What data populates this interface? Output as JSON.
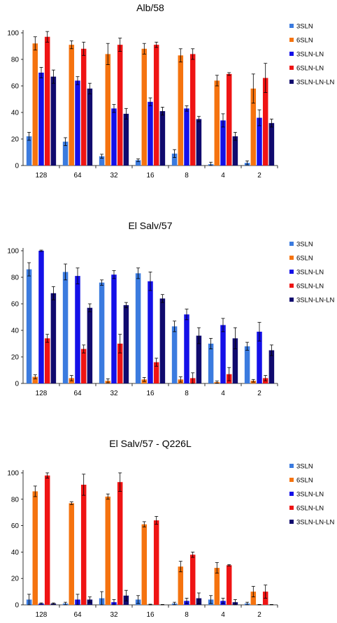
{
  "colors": {
    "3SLN": "#3b7bdf",
    "6SLN": "#f5730f",
    "3SLN-LN": "#1410e8",
    "6SLN-LN": "#ef1414",
    "3SLN-LN-LN": "#100a6e"
  },
  "chart_data": [
    {
      "type": "bar",
      "title": "Alb/58",
      "categories": [
        "128",
        "64",
        "32",
        "16",
        "8",
        "4",
        "2"
      ],
      "ylim": [
        0,
        100
      ],
      "yticks": [
        0,
        20,
        40,
        60,
        80,
        100
      ],
      "legend_position": "right",
      "series": [
        {
          "name": "3SLN",
          "values": [
            22,
            18,
            7,
            4,
            9,
            1,
            2
          ],
          "errors": [
            3,
            3,
            1.5,
            1,
            3,
            1.5,
            1.5
          ]
        },
        {
          "name": "6SLN",
          "values": [
            92,
            91,
            84,
            88,
            83,
            64,
            58
          ],
          "errors": [
            5,
            3,
            8,
            4,
            5,
            4,
            11
          ]
        },
        {
          "name": "3SLN-LN",
          "values": [
            70,
            64,
            43,
            48,
            43,
            34,
            36
          ],
          "errors": [
            4,
            3,
            3,
            3,
            2,
            5,
            6
          ]
        },
        {
          "name": "6SLN-LN",
          "values": [
            97,
            88,
            91,
            91,
            84,
            69,
            66
          ],
          "errors": [
            4,
            5,
            5,
            2,
            4,
            1,
            11
          ]
        },
        {
          "name": "3SLN-LN-LN",
          "values": [
            67,
            58,
            39,
            41,
            35,
            22,
            32
          ],
          "errors": [
            5,
            4,
            4,
            3,
            2,
            3,
            3
          ]
        }
      ]
    },
    {
      "type": "bar",
      "title": "El Salv/57",
      "categories": [
        "128",
        "64",
        "32",
        "16",
        "8",
        "4",
        "2"
      ],
      "ylim": [
        0,
        100
      ],
      "yticks": [
        0,
        20,
        40,
        60,
        80,
        100
      ],
      "legend_position": "right",
      "series": [
        {
          "name": "3SLN",
          "values": [
            86,
            84,
            76,
            83,
            43,
            30,
            28
          ],
          "errors": [
            5,
            6,
            2,
            4,
            4,
            4,
            3
          ]
        },
        {
          "name": "6SLN",
          "values": [
            5,
            4,
            2,
            3,
            3,
            1,
            2
          ],
          "errors": [
            1.5,
            2,
            1.5,
            1.5,
            2,
            0.8,
            1
          ]
        },
        {
          "name": "3SLN-LN",
          "values": [
            100,
            81,
            82,
            77,
            52,
            44,
            39
          ],
          "errors": [
            0.5,
            6,
            3,
            7,
            4,
            5,
            7
          ]
        },
        {
          "name": "6SLN-LN",
          "values": [
            34,
            26,
            30,
            16,
            4,
            7,
            4
          ],
          "errors": [
            3,
            3,
            7,
            3,
            4,
            5,
            2
          ]
        },
        {
          "name": "3SLN-LN-LN",
          "values": [
            68,
            57,
            59,
            64,
            36,
            34,
            25
          ],
          "errors": [
            5,
            3,
            2,
            3,
            6,
            8,
            4
          ]
        }
      ]
    },
    {
      "type": "bar",
      "title": "El Salv/57 - Q226L",
      "categories": [
        "128",
        "64",
        "32",
        "16",
        "8",
        "4",
        "2"
      ],
      "ylim": [
        0,
        100
      ],
      "yticks": [
        0,
        20,
        40,
        60,
        80,
        100
      ],
      "legend_position": "right",
      "series": [
        {
          "name": "3SLN",
          "values": [
            4,
            1,
            5,
            4,
            1,
            4,
            1
          ],
          "errors": [
            4,
            1,
            5,
            3,
            1,
            3,
            1
          ]
        },
        {
          "name": "6SLN",
          "values": [
            86,
            77,
            82,
            61,
            29,
            28,
            10
          ],
          "errors": [
            4,
            1,
            2,
            2,
            4,
            4,
            4
          ]
        },
        {
          "name": "3SLN-LN",
          "values": [
            1,
            4,
            2,
            0,
            3,
            3,
            0
          ],
          "errors": [
            0.5,
            4,
            2,
            0.5,
            2,
            2,
            0.3
          ]
        },
        {
          "name": "6SLN-LN",
          "values": [
            98,
            91,
            93,
            64,
            38,
            30,
            10
          ],
          "errors": [
            2,
            8,
            7,
            3,
            2,
            0.5,
            5
          ]
        },
        {
          "name": "3SLN-LN-LN",
          "values": [
            1,
            4,
            7,
            0,
            5,
            2,
            0
          ],
          "errors": [
            0.5,
            2,
            4,
            0.3,
            4,
            2,
            0.3
          ]
        }
      ]
    }
  ]
}
